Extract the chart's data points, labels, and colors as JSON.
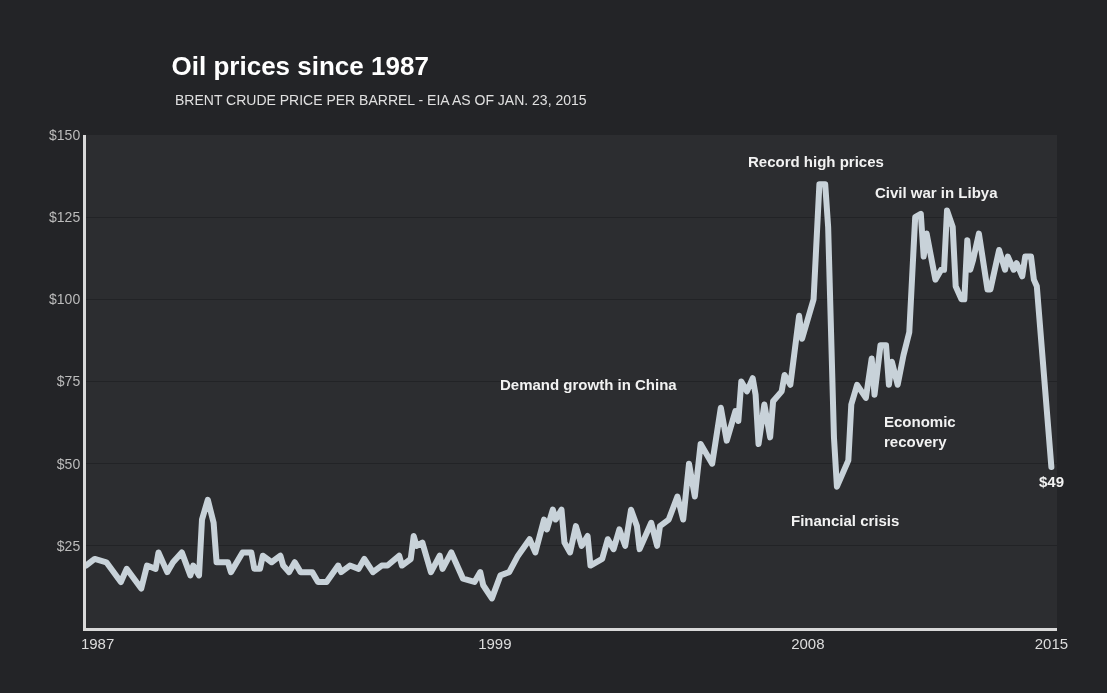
{
  "chart_data": {
    "type": "line",
    "title": "Oil prices since 1987",
    "subtitle": "BRENT CRUDE PRICE PER BARREL - EIA AS OF JAN. 23, 2015",
    "x": [
      "1987-04",
      "1987-07",
      "1987-11",
      "1988-04",
      "1988-06",
      "1988-11",
      "1989-01",
      "1989-04",
      "1989-05",
      "1989-08",
      "1989-10",
      "1990-01",
      "1990-04",
      "1990-05",
      "1990-07",
      "1990-08",
      "1990-10",
      "1990-12",
      "1991-01",
      "1991-05",
      "1991-06",
      "1991-10",
      "1992-01",
      "1992-02",
      "1992-04",
      "1992-05",
      "1992-08",
      "1992-11",
      "1992-12",
      "1993-02",
      "1993-04",
      "1993-06",
      "1993-10",
      "1993-12",
      "1994-03",
      "1994-07",
      "1994-08",
      "1994-11",
      "1995-02",
      "1995-04",
      "1995-07",
      "1995-10",
      "1995-12",
      "1996-04",
      "1996-05",
      "1996-08",
      "1996-09",
      "1996-10",
      "1996-12",
      "1997-03",
      "1997-06",
      "1997-07",
      "1997-10",
      "1998-02",
      "1998-06",
      "1998-08",
      "1998-09",
      "1998-12",
      "1999-03",
      "1999-06",
      "1999-09",
      "2000-01",
      "2000-03",
      "2000-06",
      "2000-07",
      "2000-09",
      "2000-10",
      "2000-12",
      "2001-01",
      "2001-03",
      "2001-05",
      "2001-07",
      "2001-09",
      "2001-10",
      "2002-02",
      "2002-04",
      "2002-06",
      "2002-08",
      "2002-10",
      "2002-12",
      "2003-02",
      "2003-03",
      "2003-07",
      "2003-09",
      "2003-10",
      "2004-01",
      "2004-04",
      "2004-06",
      "2004-08",
      "2004-10",
      "2004-12",
      "2005-04",
      "2005-07",
      "2005-09",
      "2005-12",
      "2006-01",
      "2006-02",
      "2006-04",
      "2006-06",
      "2006-07",
      "2006-08",
      "2006-10",
      "2006-12",
      "2007-01",
      "2007-04",
      "2007-05",
      "2007-07",
      "2007-10",
      "2007-11",
      "2008-03",
      "2008-05",
      "2008-07",
      "2008-08",
      "2008-10",
      "2008-11",
      "2009-03",
      "2009-04",
      "2009-06",
      "2009-09",
      "2009-11",
      "2009-12",
      "2010-02",
      "2010-04",
      "2010-05",
      "2010-06",
      "2010-08",
      "2010-10",
      "2010-12",
      "2011-02",
      "2011-04",
      "2011-05",
      "2011-06",
      "2011-09",
      "2011-11",
      "2011-12",
      "2012-01",
      "2012-03",
      "2012-04",
      "2012-06",
      "2012-07",
      "2012-08",
      "2012-09",
      "2012-10",
      "2012-12",
      "2013-03",
      "2013-04",
      "2013-07",
      "2013-09",
      "2013-10",
      "2013-12",
      "2014-01",
      "2014-03",
      "2014-04",
      "2014-06",
      "2014-07",
      "2014-08",
      "2015-01"
    ],
    "series": [
      {
        "color": "#c8d2d9",
        "values": [
          19,
          21,
          20,
          14,
          18,
          12,
          19,
          18,
          23,
          17,
          20,
          23,
          16,
          19,
          16,
          33,
          39,
          32,
          20,
          20,
          17,
          23,
          23,
          18,
          18,
          22,
          20,
          22,
          19,
          17,
          20,
          17,
          17,
          14,
          14,
          19,
          17,
          19,
          18,
          21,
          17,
          19,
          19,
          22,
          19,
          21,
          28,
          25,
          26,
          17,
          22,
          18,
          23,
          15,
          14,
          17,
          13,
          9,
          16,
          17,
          22,
          27,
          23,
          33,
          30,
          36,
          33,
          36,
          26,
          23,
          31,
          25,
          28,
          19,
          21,
          27,
          24,
          30,
          25,
          36,
          31,
          24,
          32,
          25,
          31,
          33,
          40,
          33,
          50,
          40,
          56,
          50,
          67,
          57,
          66,
          63,
          75,
          72,
          76,
          71,
          56,
          68,
          58,
          69,
          72,
          77,
          74,
          95,
          88,
          100,
          135,
          135,
          122,
          58,
          43,
          51,
          68,
          74,
          70,
          82,
          71,
          86,
          86,
          74,
          81,
          74,
          83,
          90,
          125,
          126,
          113,
          120,
          106,
          109,
          109,
          127,
          122,
          104,
          100,
          100,
          118,
          109,
          112,
          120,
          103,
          103,
          115,
          109,
          113,
          109,
          111,
          107,
          113,
          113,
          106,
          104,
          49
        ]
      }
    ],
    "xlim": [
      "1987-04",
      "2015-03"
    ],
    "xticks": [
      {
        "value": "1987-08",
        "label": "1987"
      },
      "1999",
      "2008",
      "2015"
    ],
    "ylim": [
      0,
      150
    ],
    "yticks": [
      {
        "value": 25,
        "label": "$25"
      },
      {
        "value": 50,
        "label": "$50"
      },
      {
        "value": 75,
        "label": "$75"
      },
      {
        "value": 100,
        "label": "$100"
      },
      {
        "value": 125,
        "label": "$125"
      },
      {
        "value": 150,
        "label": "$150"
      }
    ],
    "grid": "y",
    "marker": "none",
    "line_style": "solid",
    "annotations": [
      "Record high prices",
      "Civil war in Libya",
      "Demand growth in China",
      "Economic recovery",
      "Financial crisis",
      {
        "text": "$49",
        "x": "2015-01",
        "y": 49
      }
    ]
  }
}
